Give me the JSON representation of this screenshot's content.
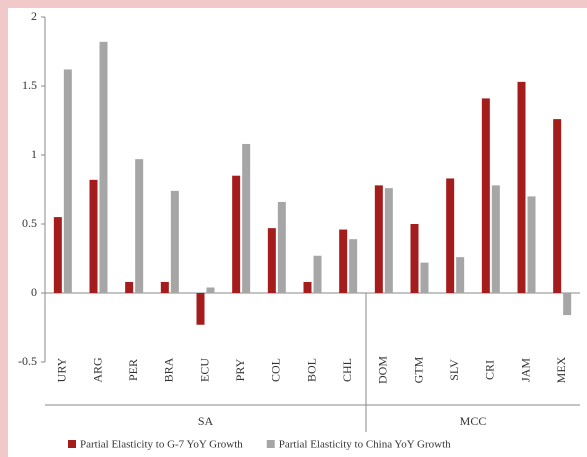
{
  "chart_data": {
    "type": "bar",
    "categories": [
      "URY",
      "ARG",
      "PER",
      "BRA",
      "ECU",
      "PRY",
      "COL",
      "BOL",
      "CHL",
      "DOM",
      "GTM",
      "SLV",
      "CRI",
      "JAM",
      "MEX"
    ],
    "groups": [
      {
        "label": "SA",
        "span": [
          0,
          8
        ]
      },
      {
        "label": "MCC",
        "span": [
          9,
          14
        ]
      }
    ],
    "series": [
      {
        "name": "Partial Elasticity to G-7 YoY Growth",
        "color": "#a51c1c",
        "values": [
          0.55,
          0.82,
          0.08,
          0.08,
          -0.23,
          0.85,
          0.47,
          0.08,
          0.46,
          0.78,
          0.5,
          0.83,
          1.41,
          1.53,
          1.26
        ]
      },
      {
        "name": "Partial Elasticity to China YoY Growth",
        "color": "#a6a6a6",
        "values": [
          1.62,
          1.82,
          0.97,
          0.74,
          0.04,
          1.08,
          0.66,
          0.27,
          0.39,
          0.76,
          0.22,
          0.26,
          0.78,
          0.7,
          -0.16
        ]
      }
    ],
    "ylim": [
      -0.5,
      2
    ],
    "yticks": [
      -0.5,
      0,
      0.5,
      1,
      1.5,
      2
    ],
    "grid": false,
    "legend": "bottom"
  }
}
